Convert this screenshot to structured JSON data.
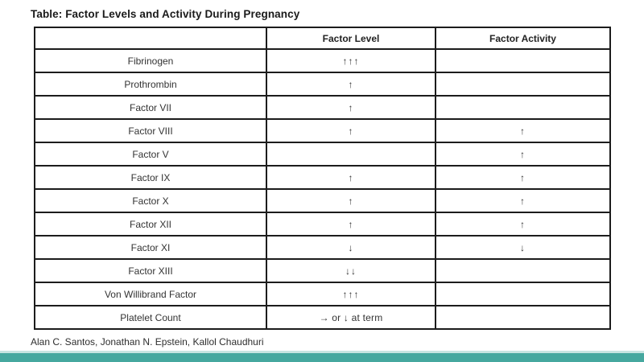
{
  "title": "Table: Factor Levels and Activity During Pregnancy",
  "table": {
    "columns": [
      "",
      "Factor Level",
      "Factor Activity"
    ],
    "rows": [
      {
        "factor": "Fibrinogen",
        "level": "↑↑↑",
        "activity": ""
      },
      {
        "factor": "Prothrombin",
        "level": "↑",
        "activity": ""
      },
      {
        "factor": "Factor VII",
        "level": "↑",
        "activity": ""
      },
      {
        "factor": "Factor VIII",
        "level": "↑",
        "activity": "↑"
      },
      {
        "factor": "Factor V",
        "level": "",
        "activity": "↑"
      },
      {
        "factor": "Factor IX",
        "level": "↑",
        "activity": "↑"
      },
      {
        "factor": "Factor X",
        "level": "↑",
        "activity": "↑"
      },
      {
        "factor": "Factor XII",
        "level": "↑",
        "activity": "↑"
      },
      {
        "factor": "Factor XI",
        "level": "↓",
        "activity": "↓"
      },
      {
        "factor": "Factor XIII",
        "level": "↓↓",
        "activity": ""
      },
      {
        "factor": "Von Willibrand Factor",
        "level": "↑↑↑",
        "activity": ""
      },
      {
        "factor": "Platelet Count",
        "level": "→ or ↓ at term",
        "activity": ""
      }
    ]
  },
  "footer": {
    "authors": "Alan C. Santos, Jonathan N. Epstein, Kallol Chaudhuri"
  },
  "colors": {
    "accent_bar": "#46a89f",
    "accent_bar_light": "#c8e4e1",
    "table_border": "#1c1c1c",
    "text": "#333333",
    "arrow": "#5d5d5d"
  }
}
